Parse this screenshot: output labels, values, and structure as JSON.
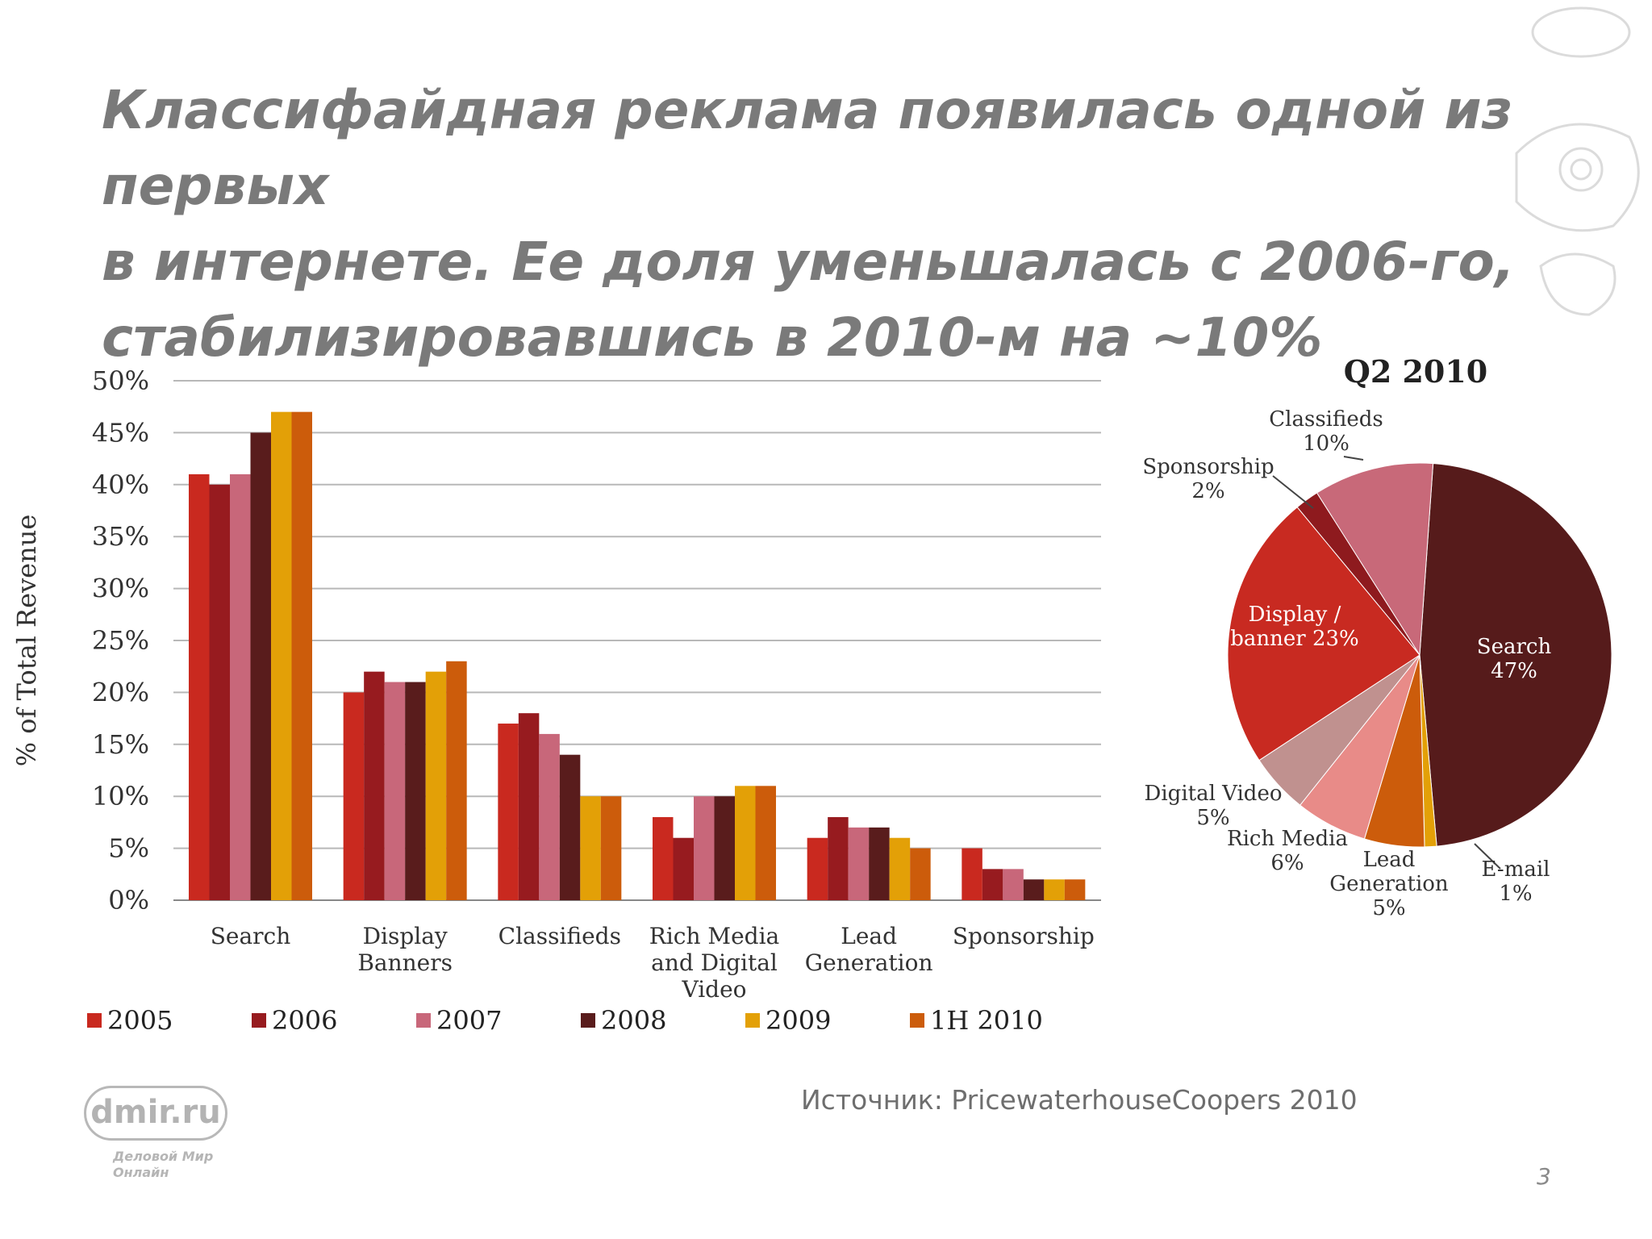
{
  "slide": {
    "title_lines": [
      "Классифайдная реклама появилась одной из первых",
      "в интернете. Ее доля уменьшалась с 2006-го,",
      "стабилизировавшись в 2010-м на ~10%"
    ],
    "source": "Источник: PricewaterhouseCoopers 2010",
    "page_number": "3",
    "logo": {
      "name": "dmir.ru",
      "tagline": [
        "Деловой Мир",
        "Онлайн"
      ]
    }
  },
  "chart_data": [
    {
      "type": "bar",
      "ylabel": "% of Total Revenue",
      "ylim": [
        0,
        50
      ],
      "yticks": [
        "0%",
        "5%",
        "10%",
        "15%",
        "20%",
        "25%",
        "30%",
        "35%",
        "40%",
        "45%",
        "50%"
      ],
      "grid": true,
      "legend_position": "bottom",
      "categories": [
        [
          "Search"
        ],
        [
          "Display",
          "Banners"
        ],
        [
          "Classifieds"
        ],
        [
          "Rich Media",
          "and Digital",
          "Video"
        ],
        [
          "Lead",
          "Generation"
        ],
        [
          "Sponsorship"
        ]
      ],
      "series": [
        {
          "name": "2005",
          "color": "#c9291f",
          "values": [
            41,
            20,
            17,
            8,
            6,
            5
          ]
        },
        {
          "name": "2006",
          "color": "#971b1f",
          "values": [
            40,
            22,
            18,
            6,
            8,
            3
          ]
        },
        {
          "name": "2007",
          "color": "#c8677a",
          "values": [
            41,
            21,
            16,
            10,
            7,
            3
          ]
        },
        {
          "name": "2008",
          "color": "#591c1c",
          "values": [
            45,
            21,
            14,
            10,
            7,
            2
          ]
        },
        {
          "name": "2009",
          "color": "#e3a007",
          "values": [
            47,
            22,
            10,
            11,
            6,
            2
          ]
        },
        {
          "name": "1H 2010",
          "color": "#cc5c0b",
          "values": [
            47,
            23,
            10,
            11,
            5,
            2
          ]
        }
      ]
    },
    {
      "type": "pie",
      "title": "Q2 2010",
      "slices": [
        {
          "label": [
            "Search",
            "47%"
          ],
          "value": 47,
          "color": "#561b1b",
          "label_color": "#ffffff"
        },
        {
          "label": [
            "E-mail",
            "1%"
          ],
          "value": 1,
          "color": "#e3a007",
          "label_color": "#333333"
        },
        {
          "label": [
            "Lead",
            "Generation",
            "5%"
          ],
          "value": 5,
          "color": "#cc5c0b",
          "label_color": "#333333"
        },
        {
          "label": [
            "Rich Media",
            "6%"
          ],
          "value": 6,
          "color": "#e88b88",
          "label_color": "#333333"
        },
        {
          "label": [
            "Digital Video",
            "5%"
          ],
          "value": 5,
          "color": "#c0918f",
          "label_color": "#333333"
        },
        {
          "label": [
            "Display /",
            "banner 23%"
          ],
          "value": 23,
          "color": "#c82a21",
          "label_color": "#ffffff"
        },
        {
          "label": [
            "Sponsorship",
            "2%"
          ],
          "value": 2,
          "color": "#8e1a1e",
          "label_color": "#333333"
        },
        {
          "label": [
            "Classifieds",
            "10%"
          ],
          "value": 10,
          "color": "#c86979",
          "label_color": "#333333"
        }
      ]
    }
  ]
}
